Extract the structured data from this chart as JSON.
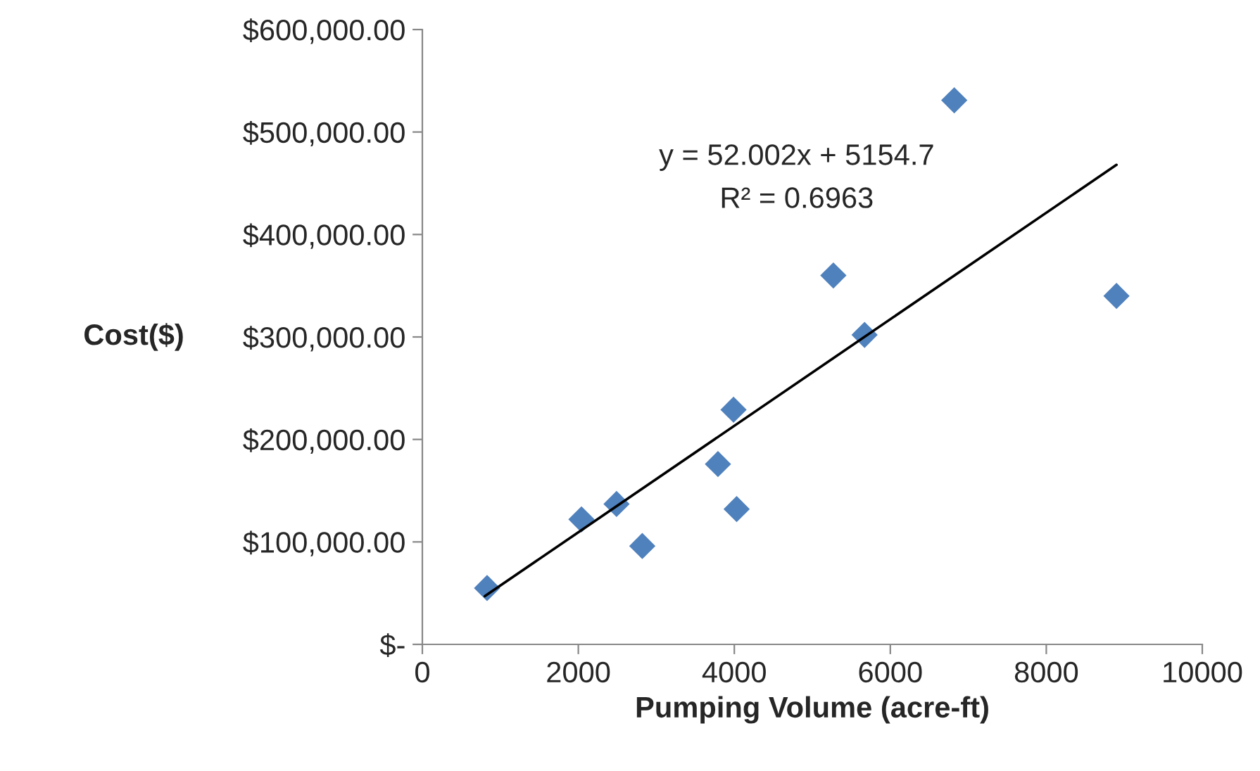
{
  "chart_data": {
    "type": "scatter",
    "xlabel": "Pumping Volume (acre-ft)",
    "ylabel": "Cost($)",
    "series": [
      {
        "color": "#4f81bd",
        "marker": "diamond",
        "x": [
          830,
          2040,
          2490,
          2820,
          3790,
          3990,
          4030,
          5270,
          5670,
          6820,
          8900
        ],
        "values": [
          55000,
          122000,
          137000,
          96000,
          176000,
          229000,
          132000,
          360000,
          302000,
          531000,
          340000
        ]
      },
      {
        "type": "line",
        "color": "#000000",
        "marker": "none",
        "line_style": "solid",
        "x": [
          800,
          8900
        ],
        "values": [
          47000,
          468000
        ]
      }
    ],
    "annotations": [
      {
        "text": "y = 52.002x + 5154.7"
      },
      {
        "text": "R² = 0.6963"
      }
    ],
    "xlim": [
      0,
      10000
    ],
    "xticks": [
      0,
      2000,
      4000,
      6000,
      8000,
      10000
    ],
    "ylim": [
      0,
      600000
    ],
    "yticks": [
      {
        "value": 0,
        "label": "$-"
      },
      {
        "value": 100000,
        "label": "$100,000.00"
      },
      {
        "value": 200000,
        "label": "$200,000.00"
      },
      {
        "value": 300000,
        "label": "$300,000.00"
      },
      {
        "value": 400000,
        "label": "$400,000.00"
      },
      {
        "value": 500000,
        "label": "$500,000.00"
      },
      {
        "value": 600000,
        "label": "$600,000.00"
      }
    ],
    "grid": false,
    "legend": false
  }
}
